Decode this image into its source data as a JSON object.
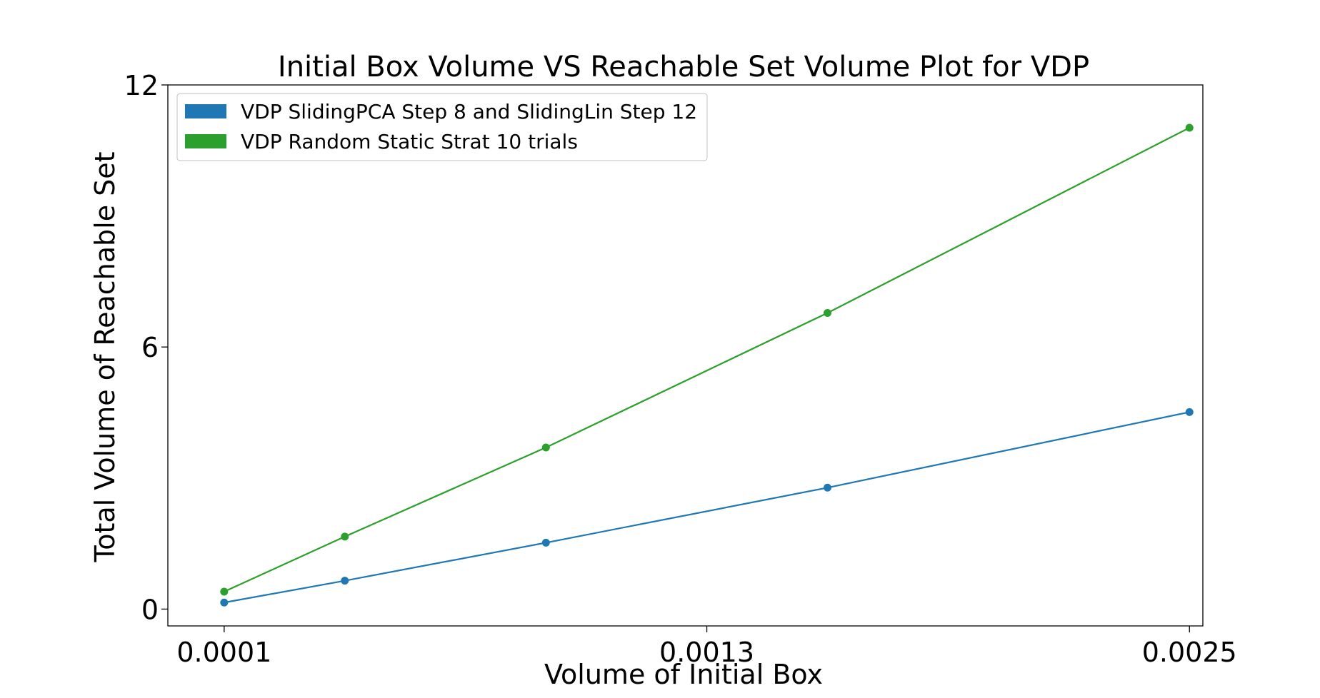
{
  "chart_data": {
    "type": "line",
    "title": "Initial Box Volume VS Reachable Set Volume Plot for VDP",
    "xlabel": "Volume of Initial Box",
    "ylabel": "Total Volume of Reachable Set",
    "xlim": [
      -4e-05,
      0.0025333
    ],
    "ylim": [
      -0.385,
      12.0
    ],
    "xticks": [
      {
        "value": 0.0001,
        "label": "0.0001"
      },
      {
        "value": 0.0013,
        "label": "0.0013"
      },
      {
        "value": 0.0025,
        "label": "0.0025"
      }
    ],
    "yticks": [
      {
        "value": 0,
        "label": "0"
      },
      {
        "value": 6,
        "label": "6"
      },
      {
        "value": 12,
        "label": "12"
      }
    ],
    "grid": false,
    "legend_position": "top-left",
    "series": [
      {
        "name": "VDP SlidingPCA Step 8 and SlidingLin Step 12",
        "color": "#1f77b4",
        "x": [
          0.0001,
          0.0004,
          0.0009,
          0.0016,
          0.0025
        ],
        "y": [
          0.15,
          0.65,
          1.52,
          2.78,
          4.51
        ]
      },
      {
        "name": "VDP Random Static  Strat 10 trials",
        "color": "#2ca02c",
        "x": [
          0.0001,
          0.0004,
          0.0009,
          0.0016,
          0.0025
        ],
        "y": [
          0.4,
          1.66,
          3.7,
          6.78,
          11.02
        ]
      }
    ]
  }
}
